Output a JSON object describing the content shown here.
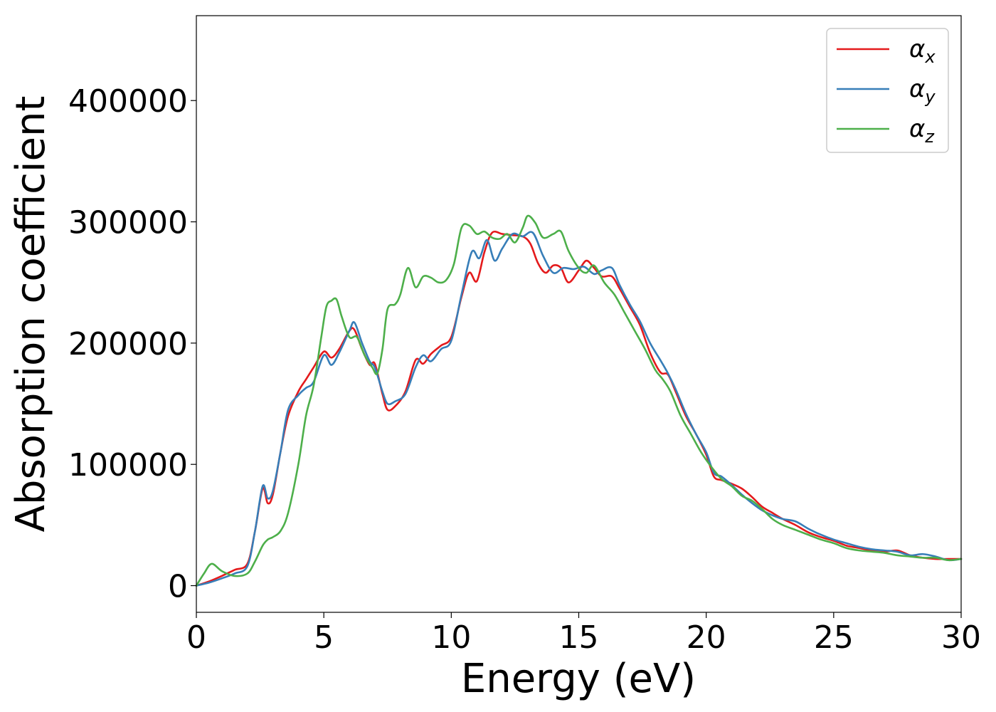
{
  "chart_data": {
    "type": "line",
    "xlabel": "Energy (eV)",
    "ylabel": "Absorption coefficient",
    "xlim": [
      0,
      30
    ],
    "ylim": [
      -22000,
      470000
    ],
    "xticks": [
      0,
      5,
      10,
      15,
      20,
      25,
      30
    ],
    "xtick_labels": [
      "0",
      "5",
      "10",
      "15",
      "20",
      "25",
      "30"
    ],
    "yticks": [
      0,
      100000,
      200000,
      300000,
      400000
    ],
    "ytick_labels": [
      "0",
      "100000",
      "200000",
      "300000",
      "400000"
    ],
    "grid": false,
    "legend_position": "top-right",
    "series": [
      {
        "name": "αx",
        "symbol": "α",
        "subscript": "x",
        "color": "#e41a1c",
        "x": [
          0,
          0.5,
          1.0,
          1.5,
          2.0,
          2.3,
          2.6,
          2.8,
          3.0,
          3.3,
          3.6,
          4.0,
          4.3,
          4.6,
          5.0,
          5.3,
          5.6,
          6.0,
          6.2,
          6.5,
          6.8,
          7.0,
          7.3,
          7.5,
          7.8,
          8.2,
          8.6,
          8.9,
          9.2,
          9.6,
          10.0,
          10.4,
          10.7,
          11.0,
          11.3,
          11.6,
          12.0,
          12.4,
          12.8,
          13.1,
          13.4,
          13.7,
          14.0,
          14.3,
          14.6,
          15.0,
          15.3,
          15.6,
          15.9,
          16.3,
          16.6,
          17.0,
          17.4,
          17.8,
          18.2,
          18.5,
          18.8,
          19.2,
          19.6,
          20.0,
          20.3,
          20.6,
          21.0,
          21.4,
          21.8,
          22.2,
          22.6,
          23.0,
          23.5,
          24.0,
          24.5,
          25.0,
          25.5,
          26.0,
          26.5,
          27.0,
          27.5,
          28.0,
          28.5,
          29.0,
          29.5,
          30.0
        ],
        "y": [
          0,
          3500,
          8000,
          13000,
          18000,
          45000,
          80000,
          68000,
          75000,
          110000,
          140000,
          160000,
          170000,
          180000,
          193000,
          188000,
          195000,
          210000,
          211000,
          195000,
          182000,
          183000,
          158000,
          145000,
          148000,
          160000,
          186000,
          183000,
          191000,
          198000,
          205000,
          238000,
          258000,
          251000,
          275000,
          291000,
          290000,
          289000,
          288000,
          282000,
          266000,
          258000,
          264000,
          262000,
          250000,
          260000,
          268000,
          262000,
          255000,
          255000,
          245000,
          230000,
          215000,
          192000,
          176000,
          174000,
          160000,
          140000,
          125000,
          108000,
          90000,
          87000,
          84000,
          80000,
          73000,
          65000,
          60000,
          55000,
          50000,
          44000,
          40000,
          37000,
          33000,
          31000,
          29000,
          28000,
          29000,
          25000,
          23000,
          22000,
          22000,
          22000
        ]
      },
      {
        "name": "αy",
        "symbol": "α",
        "subscript": "y",
        "color": "#377eb8",
        "x": [
          0,
          0.5,
          1.0,
          1.5,
          2.0,
          2.3,
          2.6,
          2.8,
          3.0,
          3.3,
          3.6,
          4.0,
          4.3,
          4.6,
          5.0,
          5.3,
          5.6,
          6.0,
          6.2,
          6.5,
          6.8,
          7.0,
          7.3,
          7.5,
          7.8,
          8.2,
          8.6,
          8.9,
          9.2,
          9.6,
          10.0,
          10.4,
          10.8,
          11.1,
          11.4,
          11.7,
          12.0,
          12.4,
          12.8,
          13.2,
          13.6,
          14.0,
          14.4,
          14.8,
          15.2,
          15.6,
          15.9,
          16.3,
          16.6,
          17.0,
          17.4,
          17.8,
          18.2,
          18.5,
          18.8,
          19.2,
          19.6,
          20.0,
          20.3,
          20.6,
          21.0,
          21.4,
          21.8,
          22.2,
          22.6,
          23.0,
          23.5,
          24.0,
          24.5,
          25.0,
          25.5,
          26.0,
          26.5,
          27.0,
          27.5,
          28.0,
          28.5,
          29.0,
          29.5,
          30.0
        ],
        "y": [
          0,
          2500,
          6000,
          10000,
          16000,
          45000,
          82000,
          72000,
          78000,
          110000,
          145000,
          157000,
          163000,
          168000,
          190000,
          182000,
          192000,
          210000,
          217000,
          200000,
          185000,
          180000,
          160000,
          150000,
          152000,
          158000,
          180000,
          190000,
          185000,
          195000,
          202000,
          240000,
          275000,
          270000,
          285000,
          268000,
          278000,
          290000,
          288000,
          291000,
          272000,
          258000,
          262000,
          261000,
          263000,
          257000,
          260000,
          262000,
          248000,
          232000,
          218000,
          200000,
          186000,
          175000,
          162000,
          142000,
          125000,
          110000,
          93000,
          90000,
          83000,
          75000,
          68000,
          62000,
          58000,
          55000,
          53000,
          47000,
          42000,
          38000,
          35000,
          32000,
          30000,
          29000,
          28000,
          25000,
          26000,
          24000,
          21000,
          22000
        ]
      },
      {
        "name": "αz",
        "symbol": "α",
        "subscript": "z",
        "color": "#4daf4a",
        "x": [
          0,
          0.3,
          0.6,
          1.0,
          1.5,
          2.0,
          2.3,
          2.6,
          2.8,
          3.0,
          3.3,
          3.6,
          4.0,
          4.3,
          4.6,
          4.9,
          5.1,
          5.3,
          5.5,
          5.7,
          6.0,
          6.3,
          6.6,
          6.9,
          7.1,
          7.3,
          7.5,
          7.8,
          8.0,
          8.3,
          8.6,
          8.9,
          9.2,
          9.5,
          9.8,
          10.1,
          10.4,
          10.7,
          11.0,
          11.3,
          11.6,
          11.9,
          12.2,
          12.5,
          12.8,
          13.0,
          13.3,
          13.6,
          14.0,
          14.3,
          14.6,
          15.0,
          15.3,
          15.6,
          16.0,
          16.4,
          16.8,
          17.2,
          17.6,
          18.0,
          18.3,
          18.6,
          19.0,
          19.4,
          19.8,
          20.2,
          20.6,
          21.0,
          21.4,
          21.8,
          22.2,
          22.6,
          23.0,
          23.5,
          24.0,
          24.5,
          25.0,
          25.5,
          26.0,
          26.5,
          27.0,
          27.5,
          28.0,
          28.5,
          29.0,
          29.5,
          30.0
        ],
        "y": [
          0,
          10000,
          18000,
          12000,
          8000,
          10000,
          20000,
          33000,
          38000,
          40000,
          45000,
          60000,
          100000,
          140000,
          165000,
          205000,
          230000,
          235000,
          236000,
          222000,
          205000,
          205000,
          190000,
          180000,
          175000,
          195000,
          228000,
          232000,
          240000,
          262000,
          246000,
          255000,
          254000,
          250000,
          252000,
          265000,
          295000,
          297000,
          290000,
          292000,
          287000,
          286000,
          290000,
          283000,
          295000,
          305000,
          299000,
          287000,
          290000,
          292000,
          276000,
          262000,
          258000,
          264000,
          250000,
          240000,
          225000,
          210000,
          195000,
          178000,
          170000,
          160000,
          140000,
          125000,
          110000,
          98000,
          88000,
          82000,
          74000,
          70000,
          63000,
          55000,
          50000,
          46000,
          42000,
          38000,
          35000,
          31000,
          29000,
          28000,
          27000,
          25000,
          24000,
          23000,
          23000,
          21000,
          22000
        ]
      }
    ]
  }
}
